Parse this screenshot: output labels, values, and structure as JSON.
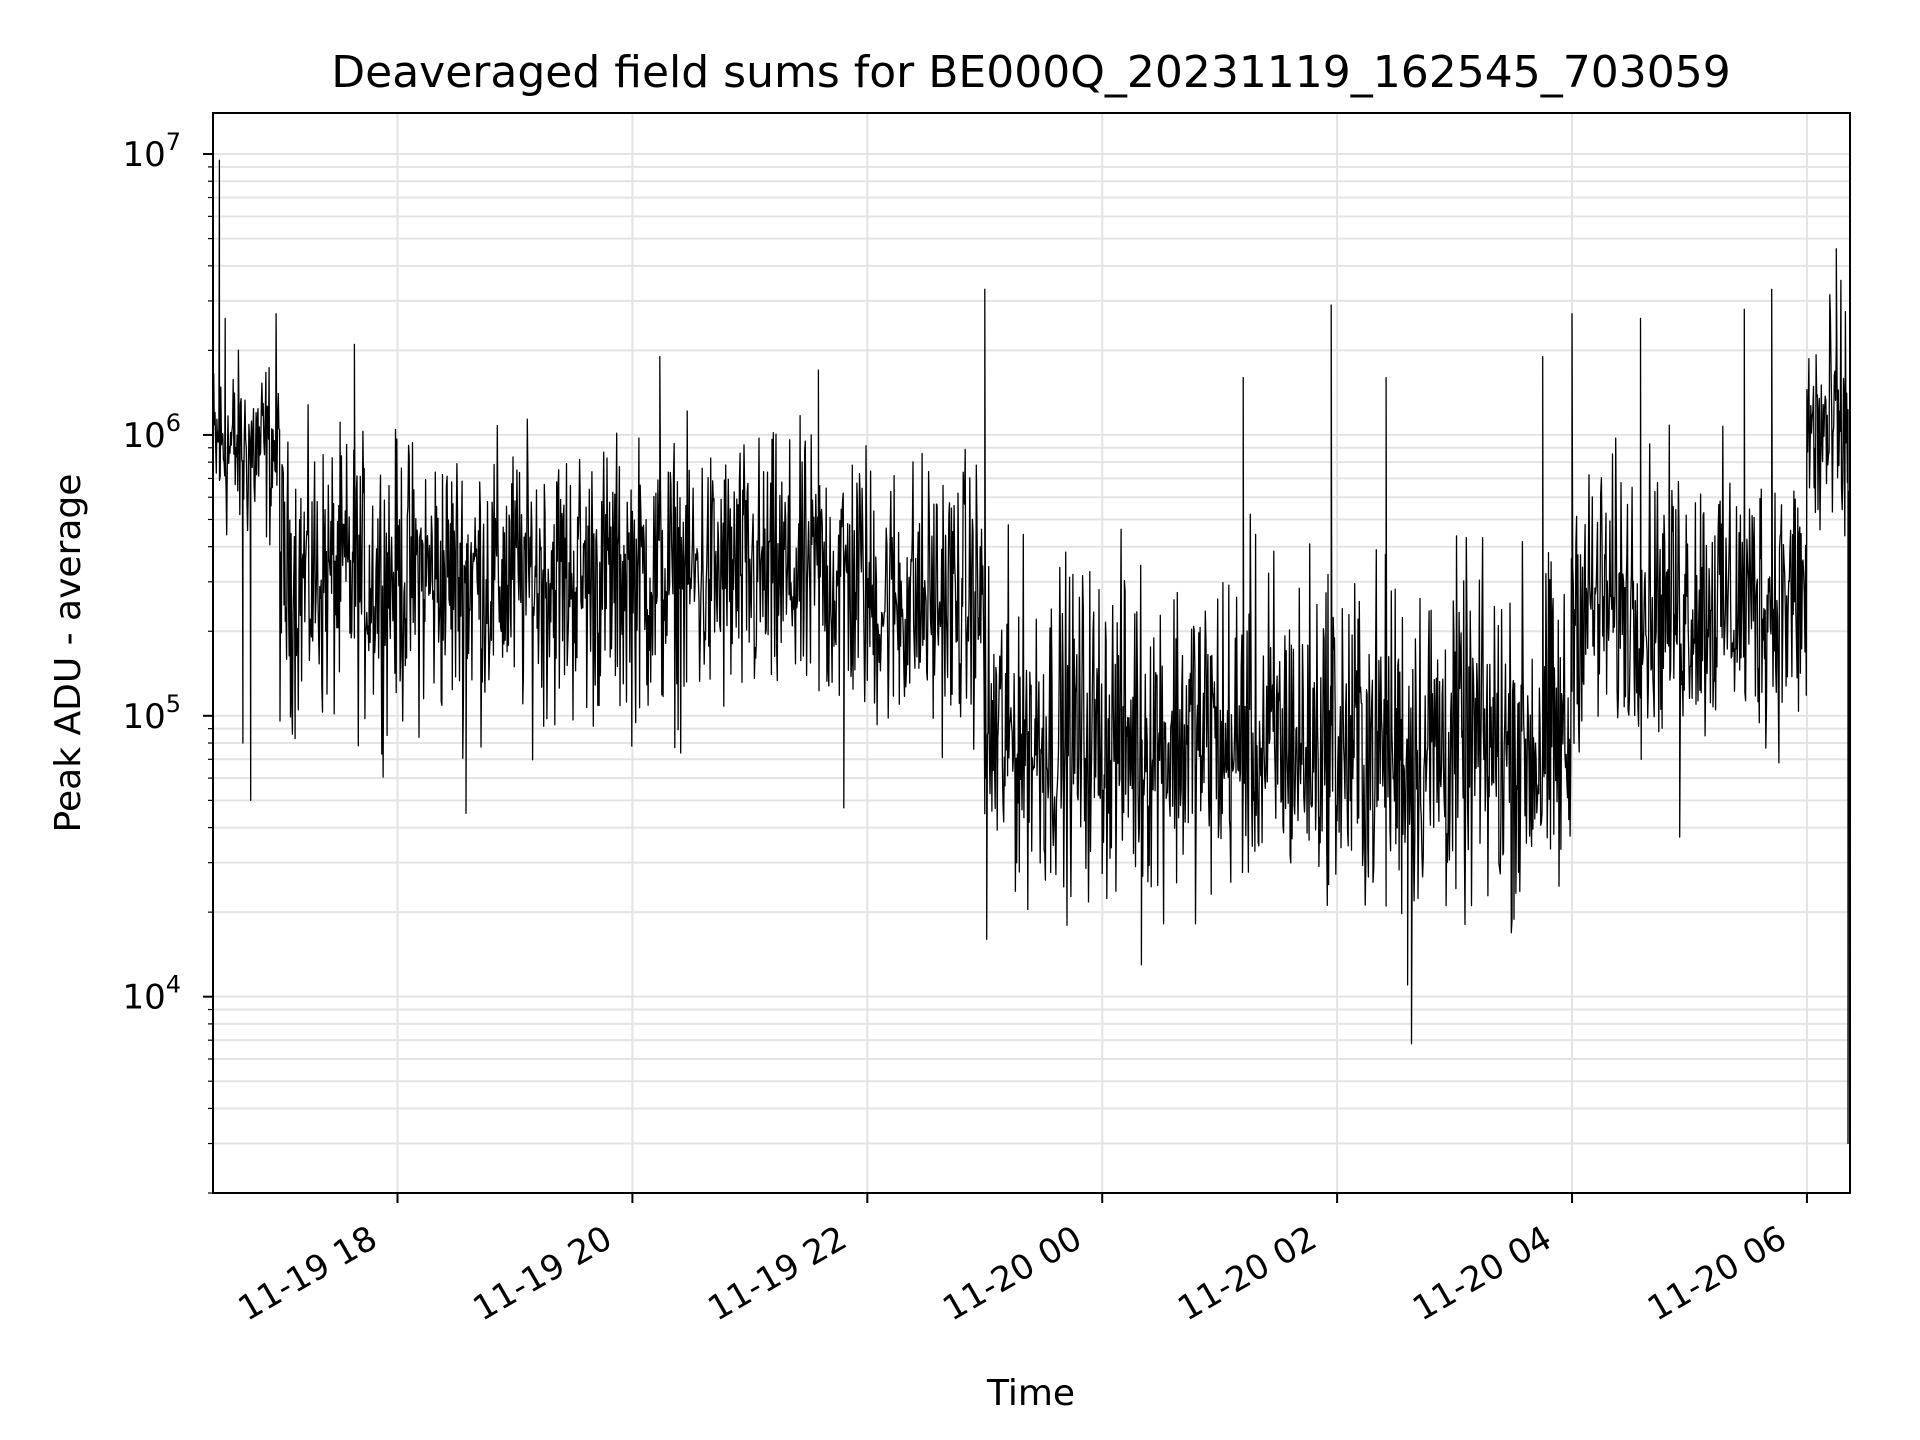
{
  "chart_data": {
    "type": "line",
    "title": "Deaveraged field sums for BE000Q_20231119_162545_703059",
    "xlabel": "Time",
    "ylabel": "Peak ADU - average",
    "y_scale": "log",
    "ylim": [
      2000,
      14000000
    ],
    "xlim": [
      "2023-11-19T16:25:45",
      "2023-11-20T06:22:00"
    ],
    "grid": true,
    "line_color": "#000000",
    "x_ticks": [
      {
        "t": "2023-11-19T18:00",
        "label": "11-19 18"
      },
      {
        "t": "2023-11-19T20:00",
        "label": "11-19 20"
      },
      {
        "t": "2023-11-19T22:00",
        "label": "11-19 22"
      },
      {
        "t": "2023-11-20T00:00",
        "label": "11-20 00"
      },
      {
        "t": "2023-11-20T02:00",
        "label": "11-20 02"
      },
      {
        "t": "2023-11-20T04:00",
        "label": "11-20 04"
      },
      {
        "t": "2023-11-20T06:00",
        "label": "11-20 06"
      }
    ],
    "y_ticks": [
      {
        "value": 10000,
        "base": "10",
        "exp": "4"
      },
      {
        "value": 100000,
        "base": "10",
        "exp": "5"
      },
      {
        "value": 1000000,
        "base": "10",
        "exp": "6"
      },
      {
        "value": 10000000,
        "base": "10",
        "exp": "7"
      }
    ],
    "series": [
      {
        "segments": [
          {
            "start": "2023-11-19T16:25:45",
            "end": "2023-11-19T17:00",
            "median": 900000,
            "low": 300000,
            "high": 2500000
          },
          {
            "start": "2023-11-19T17:00",
            "end": "2023-11-19T22:00",
            "median": 320000,
            "low": 60000,
            "high": 1400000
          },
          {
            "start": "2023-11-19T22:00",
            "end": "2023-11-19T23:00",
            "median": 250000,
            "low": 60000,
            "high": 1300000
          },
          {
            "start": "2023-11-19T23:00",
            "end": "2023-11-20T01:00",
            "median": 80000,
            "low": 15000,
            "high": 600000
          },
          {
            "start": "2023-11-20T01:00",
            "end": "2023-11-20T02:00",
            "median": 70000,
            "low": 18000,
            "high": 700000
          },
          {
            "start": "2023-11-20T02:00",
            "end": "2023-11-20T04:00",
            "median": 75000,
            "low": 12000,
            "high": 600000
          },
          {
            "start": "2023-11-20T04:00",
            "end": "2023-11-20T06:00",
            "median": 250000,
            "low": 55000,
            "high": 1300000
          },
          {
            "start": "2023-11-20T06:00",
            "end": "2023-11-20T06:22:00",
            "median": 1000000,
            "low": 200000,
            "high": 4500000
          }
        ],
        "spikes": [
          {
            "t": "2023-11-19T16:29",
            "value": 9500000
          },
          {
            "t": "2023-11-19T16:32",
            "value": 2600000
          },
          {
            "t": "2023-11-19T16:41",
            "value": 80000
          },
          {
            "t": "2023-11-19T16:45",
            "value": 50000
          },
          {
            "t": "2023-11-19T16:58",
            "value": 2700000
          },
          {
            "t": "2023-11-19T17:38",
            "value": 2100000
          },
          {
            "t": "2023-11-19T18:35",
            "value": 45000
          },
          {
            "t": "2023-11-19T20:14",
            "value": 1900000
          },
          {
            "t": "2023-11-19T21:35",
            "value": 1700000
          },
          {
            "t": "2023-11-19T21:48",
            "value": 47000
          },
          {
            "t": "2023-11-19T23:00",
            "value": 3300000
          },
          {
            "t": "2023-11-19T23:01",
            "value": 16000
          },
          {
            "t": "2023-11-20T00:20",
            "value": 13000
          },
          {
            "t": "2023-11-20T01:12",
            "value": 1600000
          },
          {
            "t": "2023-11-20T01:57",
            "value": 2900000
          },
          {
            "t": "2023-11-20T02:25",
            "value": 1600000
          },
          {
            "t": "2023-11-20T02:36",
            "value": 11000
          },
          {
            "t": "2023-11-20T02:38",
            "value": 6800
          },
          {
            "t": "2023-11-20T03:45",
            "value": 1900000
          },
          {
            "t": "2023-11-20T04:00",
            "value": 2700000
          },
          {
            "t": "2023-11-20T04:35",
            "value": 2600000
          },
          {
            "t": "2023-11-20T04:55",
            "value": 37000
          },
          {
            "t": "2023-11-20T05:28",
            "value": 2800000
          },
          {
            "t": "2023-11-20T05:42",
            "value": 3300000
          },
          {
            "t": "2023-11-20T06:15",
            "value": 4600000
          },
          {
            "t": "2023-11-20T06:21",
            "value": 3000
          }
        ]
      }
    ]
  }
}
